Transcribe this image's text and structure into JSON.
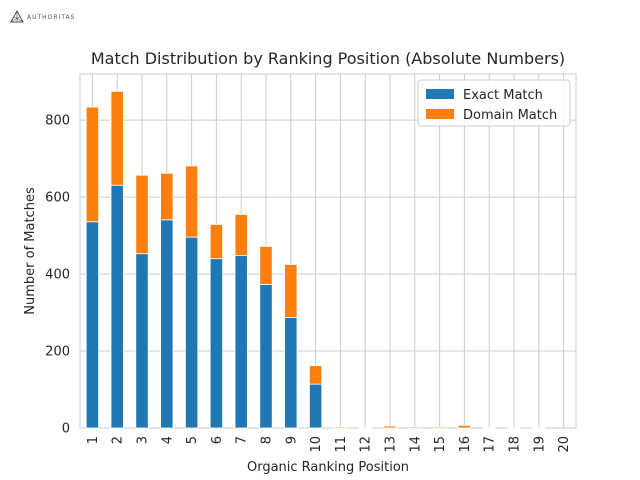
{
  "logo": {
    "text": "AUTHORITAS",
    "icon": "authoritas-logo-icon"
  },
  "chart_data": {
    "type": "bar",
    "stacked": true,
    "title": "Match Distribution by Ranking Position (Absolute Numbers)",
    "xlabel": "Organic Ranking Position",
    "ylabel": "Number of Matches",
    "categories": [
      "1",
      "2",
      "3",
      "4",
      "5",
      "6",
      "7",
      "8",
      "9",
      "10",
      "11",
      "12",
      "13",
      "14",
      "15",
      "16",
      "17",
      "18",
      "19",
      "20"
    ],
    "series": [
      {
        "name": "Exact Match",
        "color": "#1f77b4",
        "values": [
          536,
          631,
          453,
          541,
          496,
          440,
          448,
          373,
          287,
          114,
          0,
          0,
          0,
          0,
          0,
          0,
          0,
          0,
          0,
          0
        ]
      },
      {
        "name": "Domain Match",
        "color": "#ff7f0e",
        "values": [
          298,
          244,
          204,
          121,
          185,
          89,
          107,
          99,
          138,
          48,
          3,
          1,
          5,
          3,
          3,
          7,
          1,
          1,
          1,
          0
        ]
      }
    ],
    "ylim": [
      0,
      920
    ],
    "yticks": [
      0,
      200,
      400,
      600,
      800
    ],
    "grid": true,
    "legend_position": "top-right"
  }
}
